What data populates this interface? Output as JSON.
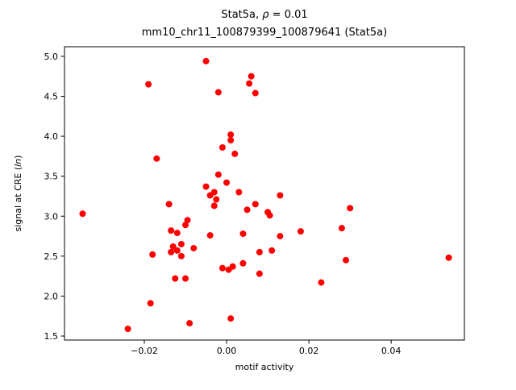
{
  "chart_data": {
    "type": "scatter",
    "title_parts": [
      "Stat5a, ",
      "ρ",
      " = 0.01"
    ],
    "subtitle": "mm10_chr11_100879399_100879641 (Stat5a)",
    "xlabel": "motif activity",
    "ylabel_parts": [
      "signal at CRE (",
      "ln",
      ")"
    ],
    "xlim": [
      -0.0394,
      0.0578
    ],
    "ylim": [
      1.45,
      5.12
    ],
    "xticks": [
      {
        "v": -0.02,
        "label": "−0.02"
      },
      {
        "v": 0.0,
        "label": "0.00"
      },
      {
        "v": 0.02,
        "label": "0.02"
      },
      {
        "v": 0.04,
        "label": "0.04"
      }
    ],
    "yticks": [
      {
        "v": 1.5,
        "label": "1.5"
      },
      {
        "v": 2.0,
        "label": "2.0"
      },
      {
        "v": 2.5,
        "label": "2.5"
      },
      {
        "v": 3.0,
        "label": "3.0"
      },
      {
        "v": 3.5,
        "label": "3.5"
      },
      {
        "v": 4.0,
        "label": "4.0"
      },
      {
        "v": 4.5,
        "label": "4.5"
      },
      {
        "v": 5.0,
        "label": "5.0"
      }
    ],
    "grid": false,
    "legend": "none",
    "point_color": "#ff0000",
    "marker_radius": 4,
    "points": [
      [
        -0.035,
        3.03
      ],
      [
        -0.024,
        1.59
      ],
      [
        -0.019,
        4.65
      ],
      [
        -0.0185,
        1.91
      ],
      [
        -0.018,
        2.52
      ],
      [
        -0.017,
        3.72
      ],
      [
        -0.014,
        3.15
      ],
      [
        -0.0135,
        2.82
      ],
      [
        -0.013,
        2.62
      ],
      [
        -0.0135,
        2.55
      ],
      [
        -0.012,
        2.79
      ],
      [
        -0.012,
        2.57
      ],
      [
        -0.0125,
        2.22
      ],
      [
        -0.011,
        2.65
      ],
      [
        -0.011,
        2.5
      ],
      [
        -0.01,
        2.89
      ],
      [
        -0.01,
        2.22
      ],
      [
        -0.0095,
        2.95
      ],
      [
        -0.009,
        1.66
      ],
      [
        -0.008,
        2.6
      ],
      [
        -0.005,
        4.94
      ],
      [
        -0.005,
        3.37
      ],
      [
        -0.004,
        3.26
      ],
      [
        -0.004,
        2.76
      ],
      [
        -0.003,
        3.3
      ],
      [
        -0.003,
        3.13
      ],
      [
        -0.002,
        4.55
      ],
      [
        -0.002,
        3.52
      ],
      [
        -0.0025,
        3.21
      ],
      [
        -0.001,
        3.86
      ],
      [
        -0.001,
        2.35
      ],
      [
        0.0,
        3.42
      ],
      [
        0.0005,
        2.33
      ],
      [
        0.001,
        4.02
      ],
      [
        0.001,
        3.95
      ],
      [
        0.0015,
        2.37
      ],
      [
        0.001,
        1.72
      ],
      [
        0.002,
        3.78
      ],
      [
        0.003,
        3.3
      ],
      [
        0.004,
        2.78
      ],
      [
        0.004,
        2.41
      ],
      [
        0.005,
        3.08
      ],
      [
        0.006,
        4.75
      ],
      [
        0.0055,
        4.66
      ],
      [
        0.007,
        4.54
      ],
      [
        0.007,
        3.15
      ],
      [
        0.008,
        2.55
      ],
      [
        0.008,
        2.28
      ],
      [
        0.01,
        3.05
      ],
      [
        0.0105,
        3.01
      ],
      [
        0.011,
        2.57
      ],
      [
        0.013,
        3.26
      ],
      [
        0.013,
        2.75
      ],
      [
        0.018,
        2.81
      ],
      [
        0.023,
        2.17
      ],
      [
        0.028,
        2.85
      ],
      [
        0.03,
        3.1
      ],
      [
        0.029,
        2.45
      ],
      [
        0.054,
        2.48
      ]
    ]
  }
}
